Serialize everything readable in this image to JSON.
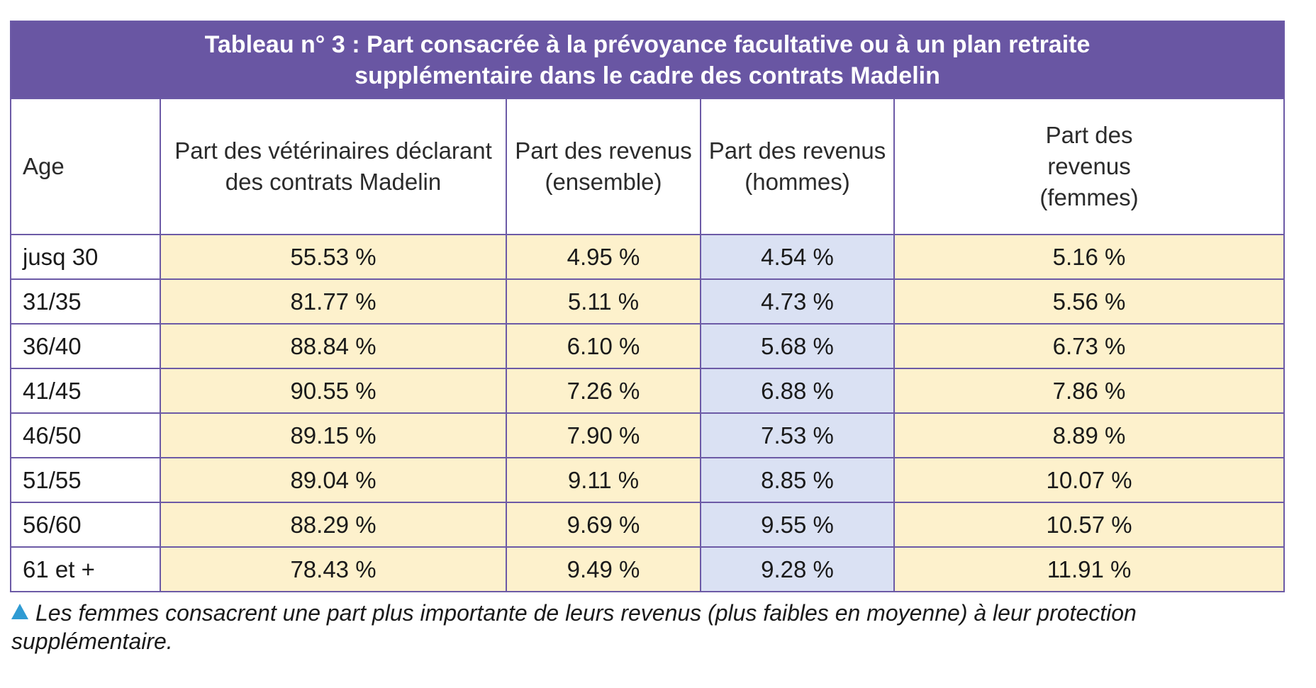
{
  "table": {
    "title_line1": "Tableau n° 3 : Part consacrée à la prévoyance facultative ou à un plan retraite",
    "title_line2": "supplémentaire dans le cadre des contrats Madelin",
    "headers": {
      "age": "Age",
      "col1_line1": "Part des vétérinaires déclarant",
      "col1_line2": "des contrats Madelin",
      "col2_line1": "Part des revenus",
      "col2_line2": "(ensemble)",
      "col3_line1": "Part des revenus",
      "col3_line2": "(hommes)",
      "col4_line1": "Part des",
      "col4_line2": "revenus",
      "col4_line3": "(femmes)"
    },
    "rows": [
      {
        "age": "jusq 30",
        "madelin": "55.53 %",
        "ensemble": "4.95 %",
        "hommes": "4.54 %",
        "femmes": "5.16 %"
      },
      {
        "age": "31/35",
        "madelin": "81.77 %",
        "ensemble": "5.11 %",
        "hommes": "4.73 %",
        "femmes": "5.56 %"
      },
      {
        "age": "36/40",
        "madelin": "88.84 %",
        "ensemble": "6.10 %",
        "hommes": "5.68 %",
        "femmes": "6.73 %"
      },
      {
        "age": "41/45",
        "madelin": "90.55 %",
        "ensemble": "7.26 %",
        "hommes": "6.88 %",
        "femmes": "7.86 %"
      },
      {
        "age": "46/50",
        "madelin": "89.15 %",
        "ensemble": "7.90 %",
        "hommes": "7.53 %",
        "femmes": "8.89 %"
      },
      {
        "age": "51/55",
        "madelin": "89.04 %",
        "ensemble": "9.11 %",
        "hommes": "8.85 %",
        "femmes": "10.07 %"
      },
      {
        "age": "56/60",
        "madelin": "88.29 %",
        "ensemble": "9.69 %",
        "hommes": "9.55 %",
        "femmes": "10.57 %"
      },
      {
        "age": "61 et +",
        "madelin": "78.43 %",
        "ensemble": "9.49 %",
        "hommes": "9.28 %",
        "femmes": "11.91 %"
      }
    ]
  },
  "caption": {
    "icon": "triangle-up-icon",
    "line1": "Les femmes consacrent une part plus importante de leurs revenus (plus faibles en moyenne) à leur protection",
    "line2": "supplémentaire."
  },
  "colors": {
    "title_bg": "#6956a3",
    "border": "#6c5aa6",
    "cream": "#fdf1cc",
    "blue": "#dae1f3",
    "triangle": "#2f9bd3"
  }
}
